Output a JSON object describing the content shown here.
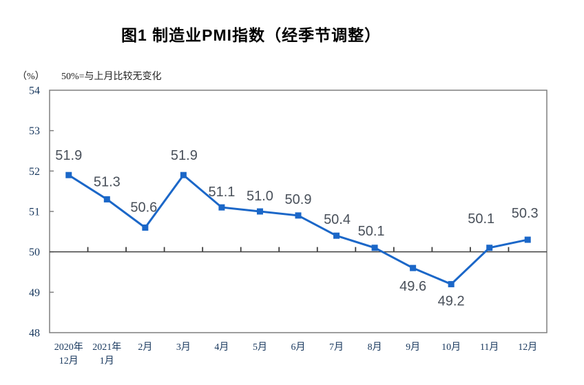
{
  "header": {
    "title": "图1 制造业PMI指数（经季节调整）"
  },
  "axis_notes": {
    "unit_label": "（%）",
    "reference_note": "50%=与上月比较无变化"
  },
  "colors": {
    "line": "#1b67c8",
    "marker": "#1b67c8",
    "plot_border": "#7f7f7f",
    "reference_line": "#3f3f3f",
    "x_tick": "#3f3f3f",
    "y_tick": "#7f7f7f",
    "axis_text": "#17375d",
    "data_label_text": "#49505a"
  },
  "chart_data": {
    "type": "line",
    "title": "图1 制造业PMI指数（经季节调整）",
    "subtitle": "50%=与上月比较无变化",
    "ylabel": "（%）",
    "categories": [
      "2020年12月",
      "2021年1月",
      "2月",
      "3月",
      "4月",
      "5月",
      "6月",
      "7月",
      "8月",
      "9月",
      "10月",
      "11月",
      "12月"
    ],
    "category_display_lines": [
      [
        "2020年",
        "12月"
      ],
      [
        "2021年",
        "1月"
      ],
      [
        "2月"
      ],
      [
        "3月"
      ],
      [
        "4月"
      ],
      [
        "5月"
      ],
      [
        "6月"
      ],
      [
        "7月"
      ],
      [
        "8月"
      ],
      [
        "9月"
      ],
      [
        "10月"
      ],
      [
        "11月"
      ],
      [
        "12月"
      ]
    ],
    "series": [
      {
        "name": "制造业PMI",
        "values": [
          51.9,
          51.3,
          50.6,
          51.9,
          51.1,
          51.0,
          50.9,
          50.4,
          50.1,
          49.6,
          49.2,
          50.1,
          50.3
        ],
        "value_labels": [
          "51.9",
          "51.3",
          "50.6",
          "51.9",
          "51.1",
          "51.0",
          "50.9",
          "50.4",
          "50.1",
          "49.6",
          "49.2",
          "50.1",
          "50.3"
        ]
      }
    ],
    "ylim": [
      48,
      54
    ],
    "ytick_values": [
      48,
      49,
      50,
      51,
      52,
      53,
      54
    ],
    "reference_value": 50,
    "grid": false,
    "legend_position": "none"
  }
}
